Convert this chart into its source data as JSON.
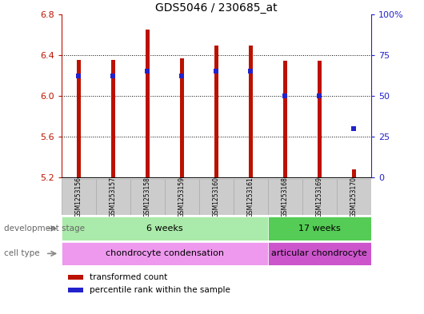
{
  "title": "GDS5046 / 230685_at",
  "samples": [
    "GSM1253156",
    "GSM1253157",
    "GSM1253158",
    "GSM1253159",
    "GSM1253160",
    "GSM1253161",
    "GSM1253168",
    "GSM1253169",
    "GSM1253170"
  ],
  "bar_tops": [
    6.35,
    6.35,
    6.65,
    6.37,
    6.49,
    6.49,
    6.34,
    6.34,
    5.28
  ],
  "bar_bottom": 5.2,
  "percentile_values": [
    62,
    62,
    65,
    62,
    65,
    65,
    50,
    50,
    30
  ],
  "ylim_left": [
    5.2,
    6.8
  ],
  "ylim_right": [
    0,
    100
  ],
  "yticks_left": [
    5.2,
    5.6,
    6.0,
    6.4,
    6.8
  ],
  "yticks_right": [
    0,
    25,
    50,
    75,
    100
  ],
  "ytick_labels_right": [
    "0",
    "25",
    "50",
    "75",
    "100%"
  ],
  "bar_color": "#BB1100",
  "percentile_color": "#2222CC",
  "dev_stage_groups": [
    {
      "label": "6 weeks",
      "start": 0,
      "end": 6,
      "color": "#AAEAAA"
    },
    {
      "label": "17 weeks",
      "start": 6,
      "end": 9,
      "color": "#55CC55"
    }
  ],
  "cell_type_groups": [
    {
      "label": "chondrocyte condensation",
      "start": 0,
      "end": 6,
      "color": "#EE99EE"
    },
    {
      "label": "articular chondrocyte",
      "start": 6,
      "end": 9,
      "color": "#CC55CC"
    }
  ],
  "legend_items": [
    {
      "label": "transformed count",
      "color": "#BB1100"
    },
    {
      "label": "percentile rank within the sample",
      "color": "#2222CC"
    }
  ],
  "dev_stage_label": "development stage",
  "cell_type_label": "cell type",
  "bar_width": 0.12,
  "marker_size": 4,
  "label_box_color": "#CCCCCC",
  "label_box_edge": "#AAAAAA"
}
